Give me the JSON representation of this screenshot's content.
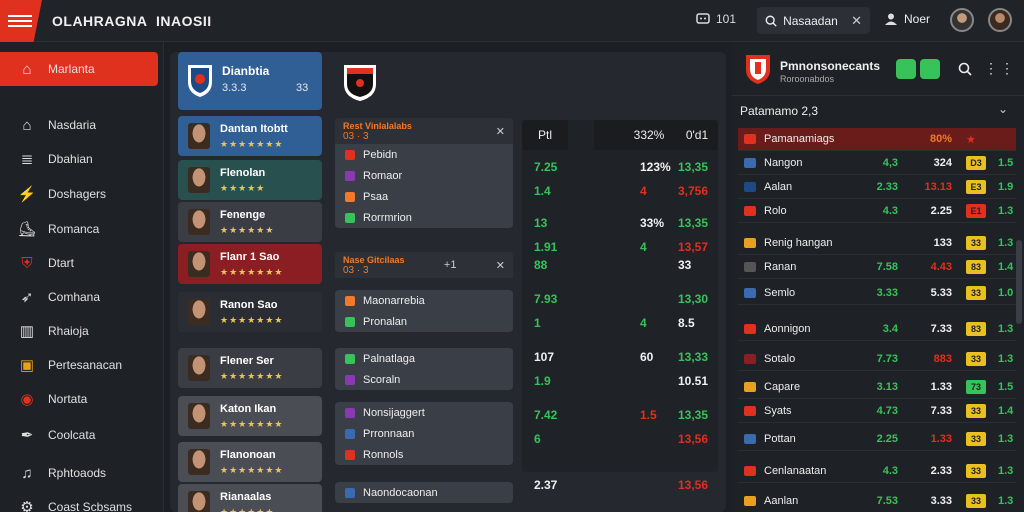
{
  "app": {
    "brand": "OLAHRAGNA",
    "brand2": "INAOSII"
  },
  "topbar": {
    "counter": "101",
    "search_value": "Nasaadan",
    "user_name": "Noer"
  },
  "sidebar": {
    "items": [
      {
        "label": "Marlanta",
        "icon": "home-icon",
        "active": true
      },
      {
        "label": "Nasdaria",
        "icon": "house-icon"
      },
      {
        "label": "Dbahian",
        "icon": "list-icon"
      },
      {
        "label": "Doshagers",
        "icon": "bolt-icon"
      },
      {
        "label": "Romanca",
        "icon": "shoe-icon"
      },
      {
        "label": "Dtart",
        "icon": "shield-icon"
      },
      {
        "label": "Comhana",
        "icon": "bird-icon"
      },
      {
        "label": "Rhaioja",
        "icon": "chart-icon"
      },
      {
        "label": "Pertesanacan",
        "icon": "panel-icon"
      },
      {
        "label": "Nortata",
        "icon": "badge-icon"
      },
      {
        "label": "Coolcata",
        "icon": "feather-icon"
      },
      {
        "label": "Rphtoaods",
        "icon": "bell-icon"
      },
      {
        "label": "Coast Scbsams",
        "icon": "gear-icon"
      }
    ]
  },
  "team_head": {
    "name": "Dianbtia",
    "stat1": "3.3.3",
    "stars": "• • • • • •",
    "stat2": "33"
  },
  "players": [
    {
      "name": "Dantan Itobtt",
      "stars": "★★★★★★★",
      "color": "#2f5f95"
    },
    {
      "name": "Flenolan",
      "stars": "★★★★★",
      "color": "#27504f"
    },
    {
      "name": "Fenenge",
      "stars": "★★★★★★",
      "color": "#3a3d44"
    },
    {
      "name": "Flanr 1 Sao",
      "stars": "★★★★★★★",
      "color": "#8a1e22"
    },
    {
      "name": "Ranon Sao",
      "stars": "★★★★★★★",
      "color": "#2a2d33"
    },
    {
      "name": "Flener Ser",
      "stars": "★★★★★★★",
      "color": "#3a3d44"
    },
    {
      "name": "Katon Ikan",
      "stars": "★★★★★★★",
      "color": "#4a4d54"
    },
    {
      "name": "Flanonoan",
      "stars": "★★★★★★★",
      "color": "#4a4d54"
    },
    {
      "name": "Rianaalas",
      "stars": "★★★★★★",
      "color": "#4a4d54"
    }
  ],
  "matches": [
    {
      "header": "Rest Vinlalalabs",
      "score": "03 · 3",
      "rows": [
        "Pebidn",
        "Romaor",
        "Psaa",
        "Rorrmrion"
      ],
      "icon": "close-icon"
    },
    {
      "header": "Nase Gitcilaas",
      "score": "03 · 3",
      "rows": [],
      "icon": "close-icon",
      "extra": "+1"
    },
    {
      "header": "",
      "score": "",
      "rows": [
        "Maonarrebia",
        "Pronalan"
      ]
    },
    {
      "header": "",
      "score": "",
      "rows": [
        "Palnatlaga",
        "Scoraln"
      ]
    },
    {
      "header": "",
      "score": "",
      "rows": [
        "Nonsijaggert",
        "Prronnaan",
        "Ronnols"
      ]
    },
    {
      "header": "",
      "score": "",
      "rows": [
        "Naondocaonan"
      ]
    }
  ],
  "odds": {
    "headers": [
      "Ptl",
      "332%",
      "0'd1"
    ],
    "rows": [
      {
        "a": "7.25",
        "b": "123%",
        "c": "13,35"
      },
      {
        "a": "1.4",
        "b": "4",
        "c": "3,756"
      },
      {
        "a": "13",
        "b": "33%",
        "c": "13,35"
      },
      {
        "a": "1.91",
        "b": "4",
        "c": "13,57"
      },
      {
        "a": "88",
        "b": "",
        "c": "33"
      },
      {
        "a": "7.93",
        "b": "",
        "c": "13,30"
      },
      {
        "a": "1",
        "b": "4",
        "c": "8.5"
      },
      {
        "a": "107",
        "b": "60",
        "c": "13,33"
      },
      {
        "a": "1.9",
        "b": "",
        "c": "10.51"
      },
      {
        "a": "7.42",
        "b": "1.5",
        "c": "13,35"
      },
      {
        "a": "6",
        "b": "",
        "c": "13,56"
      },
      {
        "a": "2.37",
        "b": "",
        "c": "13,56"
      }
    ]
  },
  "rpanel": {
    "title": "Pmnonsonecants",
    "subtitle": "Roroonabdos",
    "section": "Patamamo 2,3",
    "rows": [
      {
        "name": "Pamanamiags",
        "c1": "",
        "c2": "80%",
        "badge": "",
        "c3": "",
        "hl": true
      },
      {
        "name": "Nangon",
        "c1": "4,3",
        "c2": "324",
        "badge": "D3",
        "c3": "1.5"
      },
      {
        "name": "Aalan",
        "c1": "2.33",
        "c2": "13.13",
        "badge": "E3",
        "c3": "1.9"
      },
      {
        "name": "Rolo",
        "c1": "4.3",
        "c2": "2.25",
        "badge": "E1",
        "c3": "1.3"
      },
      {
        "name": "Renig hangan",
        "c1": "",
        "c2": "133",
        "badge": "33",
        "c3": "1.3"
      },
      {
        "name": "Ranan",
        "c1": "7.58",
        "c2": "4.43",
        "badge": "83",
        "c3": "1.4"
      },
      {
        "name": "Semlo",
        "c1": "3.33",
        "c2": "5.33",
        "badge": "33",
        "c3": "1.0"
      },
      {
        "name": "Aonnigon",
        "c1": "3.4",
        "c2": "7.33",
        "badge": "83",
        "c3": "1.3"
      },
      {
        "name": "Sotalo",
        "c1": "7.73",
        "c2": "883",
        "badge": "33",
        "c3": "1.3"
      },
      {
        "name": "Capare",
        "c1": "3.13",
        "c2": "1.33",
        "badge": "73",
        "c3": "1.5"
      },
      {
        "name": "Syats",
        "c1": "4.73",
        "c2": "7.33",
        "badge": "33",
        "c3": "1.4"
      },
      {
        "name": "Pottan",
        "c1": "2.25",
        "c2": "1.33",
        "badge": "33",
        "c3": "1.3"
      },
      {
        "name": "Cenlanaatan",
        "c1": "4.3",
        "c2": "2.33",
        "badge": "33",
        "c3": "1.3"
      },
      {
        "name": "Aanlan",
        "c1": "7.53",
        "c2": "3.33",
        "badge": "33",
        "c3": "1.3"
      }
    ]
  },
  "colors": {
    "accent": "#e0301e",
    "green": "#37c35a",
    "orange": "#f07a2a",
    "yellow": "#e8c020"
  }
}
